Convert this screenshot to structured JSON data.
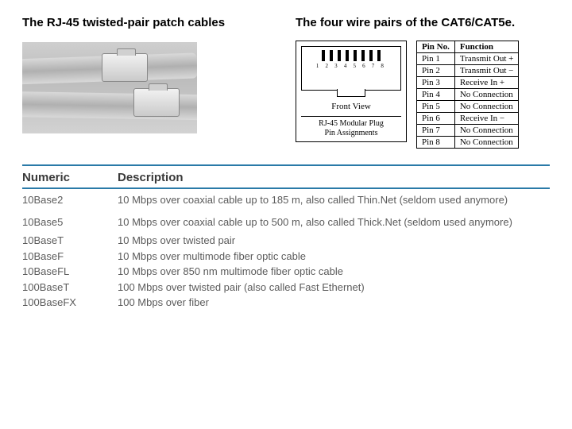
{
  "left_title": "The RJ-45 twisted-pair patch cables",
  "right_title": "The four wire pairs of the CAT6/CAT5e.",
  "rj45": {
    "pin_numbers": "1 2 3 4 5 6 7 8",
    "front_view": "Front View",
    "caption_line1": "RJ-45 Modular Plug",
    "caption_line2": "Pin Assignments"
  },
  "pin_table": {
    "headers": [
      "Pin No.",
      "Function"
    ],
    "rows": [
      [
        "Pin 1",
        "Transmit Out +"
      ],
      [
        "Pin 2",
        "Transmit Out −"
      ],
      [
        "Pin 3",
        "Receive In +"
      ],
      [
        "Pin 4",
        "No Connection"
      ],
      [
        "Pin 5",
        "No Connection"
      ],
      [
        "Pin 6",
        "Receive In −"
      ],
      [
        "Pin 7",
        "No Connection"
      ],
      [
        "Pin 8",
        "No Connection"
      ]
    ]
  },
  "spec_table": {
    "headers": [
      "Numeric",
      "Description"
    ],
    "rows": [
      {
        "numeric": "10Base2",
        "desc": "10 Mbps over coaxial cable up to 185 m, also called Thin.Net (seldom used anymore)",
        "tight": false
      },
      {
        "numeric": "10Base5",
        "desc": "10 Mbps over coaxial cable up to 500 m, also called Thick.Net (seldom used anymore)",
        "tight": false
      },
      {
        "numeric": "10BaseT",
        "desc": "10 Mbps over twisted pair",
        "tight": true
      },
      {
        "numeric": "10BaseF",
        "desc": "10 Mbps over multimode fiber optic cable",
        "tight": true
      },
      {
        "numeric": "10BaseFL",
        "desc": "10 Mbps over 850 nm multimode fiber optic cable",
        "tight": true
      },
      {
        "numeric": "100BaseT",
        "desc": "100 Mbps over twisted pair (also called Fast Ethernet)",
        "tight": true
      },
      {
        "numeric": "100BaseFX",
        "desc": "100 Mbps over fiber",
        "tight": true
      }
    ]
  },
  "colors": {
    "rule": "#2a7aa8",
    "text_gray": "#5b5b5b"
  }
}
